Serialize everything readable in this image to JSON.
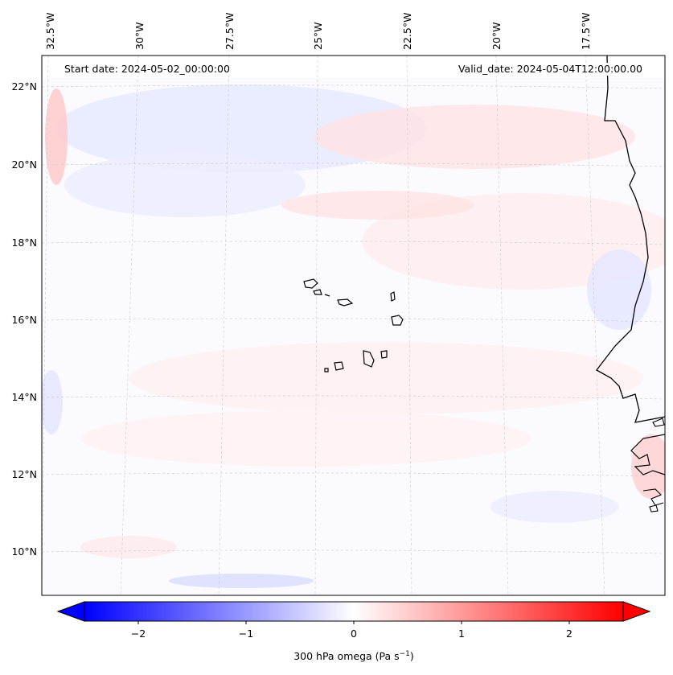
{
  "header": {
    "start_label": "Start date: 2024-05-02_00:00:00",
    "valid_label": "Valid_date: 2024-05-04T12:00:00.00"
  },
  "map": {
    "lon_labels": [
      "32.5°W",
      "30°W",
      "27.5°W",
      "25°W",
      "22.5°W",
      "20°W",
      "17.5°W"
    ],
    "lat_labels": [
      "22°N",
      "20°N",
      "18°N",
      "16°N",
      "14°N",
      "12°N",
      "10°N"
    ],
    "region": "Cabo Verde and West African coast"
  },
  "colorbar": {
    "ticks": [
      "−2",
      "−1",
      "0",
      "1",
      "2"
    ],
    "label": "300 hPa omega (Pa s",
    "label_sup": "−1",
    "label_end": ")",
    "min_color": "#0000ff",
    "mid_color": "#ffffff",
    "max_color": "#ff0000"
  },
  "chart_data": {
    "type": "heatmap",
    "variable": "300 hPa omega",
    "units": "Pa s^-1",
    "color_range": [
      -2.5,
      2.5
    ],
    "colormap": "bwr",
    "lon_range": [
      -32.5,
      -15.5
    ],
    "lat_range": [
      9,
      22.5
    ]
  }
}
